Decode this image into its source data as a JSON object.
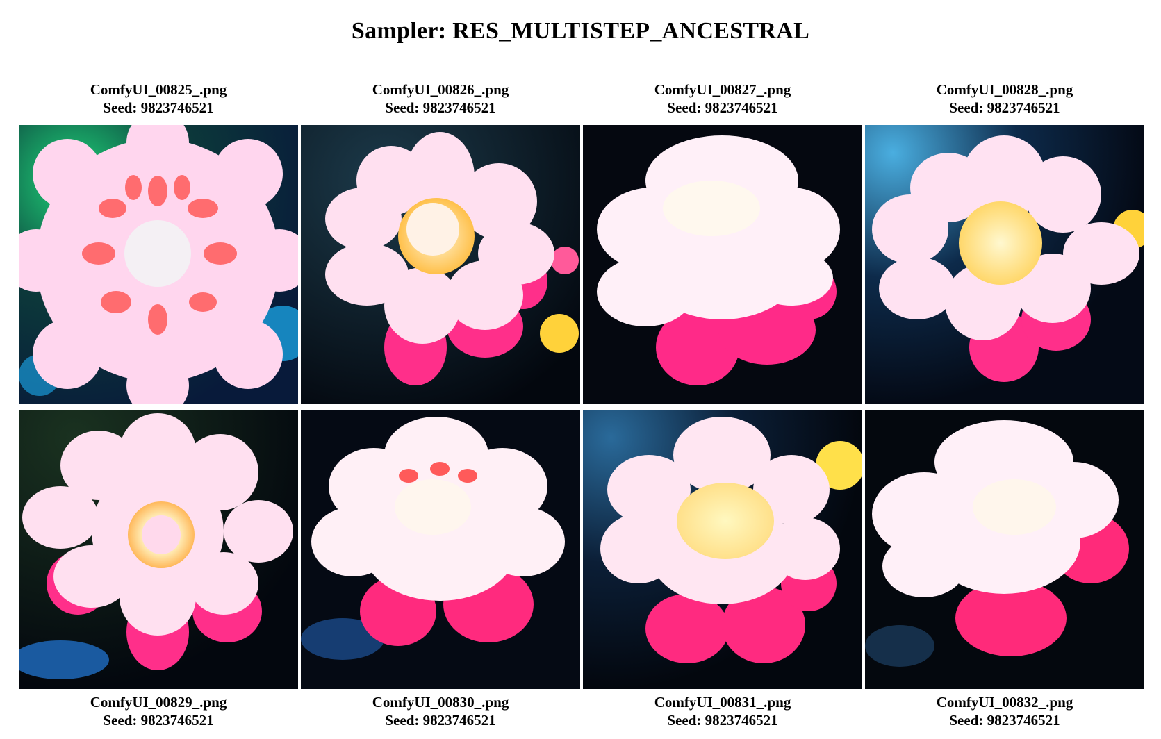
{
  "title": "Sampler: RES_MULTISTEP_ANCESTRAL",
  "images": [
    {
      "filename": "ComfyUI_00825_.png",
      "seed": "Seed: 9823746521",
      "subject": "flower-icon"
    },
    {
      "filename": "ComfyUI_00826_.png",
      "seed": "Seed: 9823746521",
      "subject": "flower-icon"
    },
    {
      "filename": "ComfyUI_00827_.png",
      "seed": "Seed: 9823746521",
      "subject": "flower-icon"
    },
    {
      "filename": "ComfyUI_00828_.png",
      "seed": "Seed: 9823746521",
      "subject": "flower-icon"
    },
    {
      "filename": "ComfyUI_00829_.png",
      "seed": "Seed: 9823746521",
      "subject": "flower-icon"
    },
    {
      "filename": "ComfyUI_00830_.png",
      "seed": "Seed: 9823746521",
      "subject": "flower-icon"
    },
    {
      "filename": "ComfyUI_00831_.png",
      "seed": "Seed: 9823746521",
      "subject": "flower-icon"
    },
    {
      "filename": "ComfyUI_00832_.png",
      "seed": "Seed: 9823746521",
      "subject": "flower-icon"
    }
  ],
  "colors": {
    "petal": "#ffd9ec",
    "petal_tip": "#ff2f8a",
    "center": "#fff4c8",
    "background": "#05101e"
  }
}
